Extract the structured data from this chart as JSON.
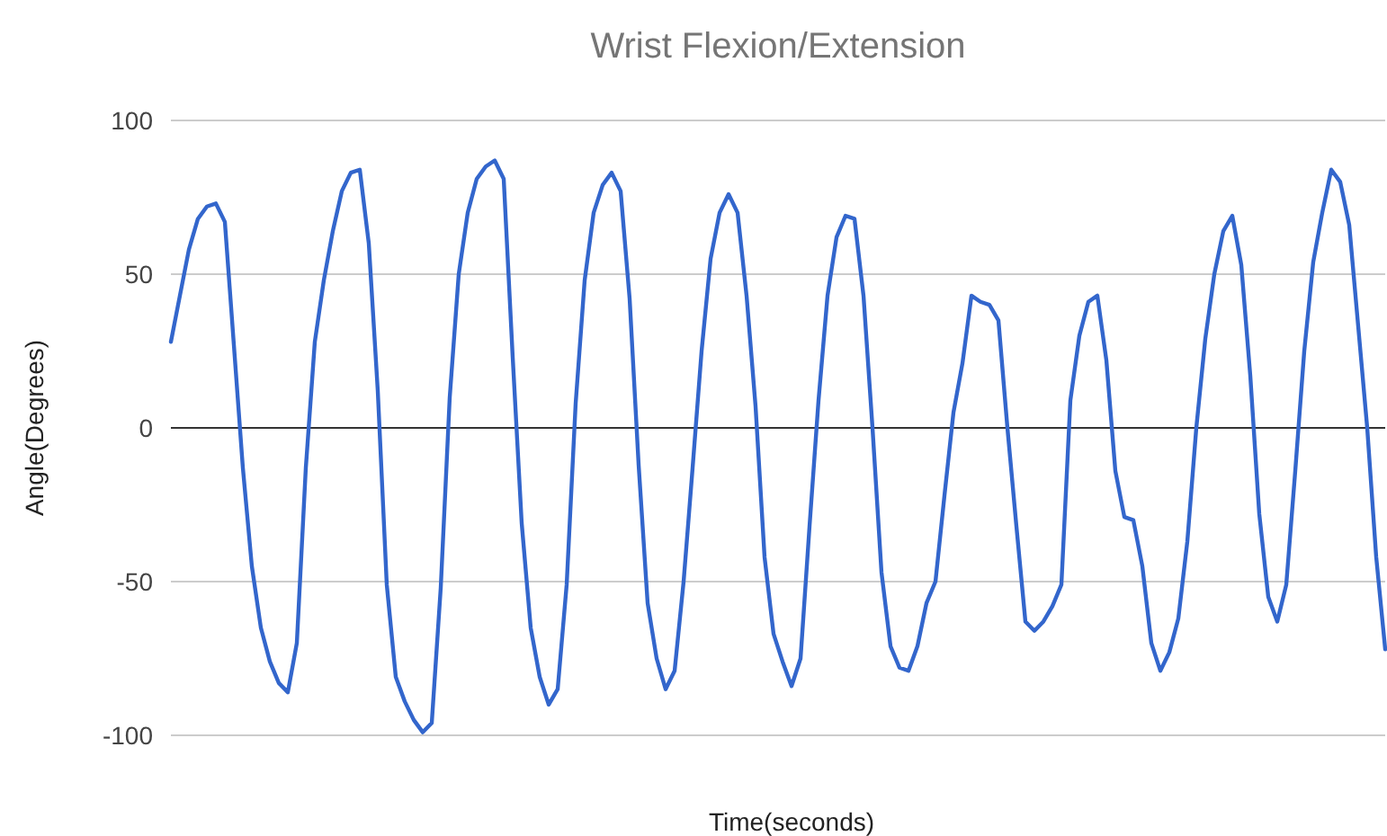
{
  "chart_data": {
    "type": "line",
    "title": "Wrist Flexion/Extension",
    "xlabel": "Time(seconds)",
    "ylabel": "Angle(Degrees)",
    "categories": [
      null,
      null,
      null,
      null,
      null,
      null,
      null,
      null,
      null,
      null,
      null,
      null,
      null,
      null,
      null,
      null,
      null,
      null,
      null,
      null,
      null,
      null,
      null,
      null,
      null,
      null,
      null,
      null,
      null,
      null,
      null,
      null,
      null,
      null,
      null,
      null,
      null,
      null,
      null,
      null,
      null,
      null,
      null,
      null,
      null,
      null,
      null,
      null,
      null,
      null,
      null,
      null,
      null,
      null,
      null,
      null,
      null,
      null,
      null,
      null,
      null,
      null,
      null,
      null,
      null,
      null,
      null,
      null,
      null,
      null,
      null,
      null,
      null,
      null,
      null,
      null,
      null,
      null,
      null,
      null,
      null,
      null,
      null,
      null,
      null,
      null,
      null,
      null,
      null,
      null,
      null,
      null,
      null,
      null,
      null,
      null,
      null,
      null,
      null,
      null,
      null,
      null,
      null,
      null,
      null,
      null,
      null,
      null,
      null,
      null,
      null,
      null,
      null,
      null,
      null,
      null,
      null,
      null,
      null,
      null,
      null,
      null,
      null,
      null,
      null,
      null,
      null,
      null,
      null,
      null,
      null,
      null,
      null,
      null,
      null,
      null
    ],
    "series": [
      {
        "color": "#3366cc",
        "values": [
          28,
          43,
          58,
          68,
          72,
          73,
          67,
          27,
          -13,
          -45,
          -65,
          -76,
          -83,
          -86,
          -70,
          -13,
          28,
          48,
          64,
          77,
          83,
          84,
          60,
          12,
          -51,
          -81,
          -89,
          -95,
          -99,
          -96,
          -52,
          10,
          50,
          70,
          81,
          85,
          87,
          81,
          23,
          -31,
          -65,
          -81,
          -90,
          -85,
          -51,
          8,
          48,
          70,
          79,
          83,
          77,
          42,
          -12,
          -57,
          -75,
          -85,
          -79,
          -50,
          -13,
          25,
          55,
          70,
          76,
          70,
          43,
          7,
          -42,
          -67,
          -76,
          -84,
          -75,
          -32,
          9,
          43,
          62,
          69,
          68,
          43,
          0,
          -47,
          -71,
          -78,
          -79,
          -71,
          -57,
          -50,
          -22,
          5,
          21,
          43,
          41,
          40,
          35,
          0,
          -32,
          -63,
          -66,
          -63,
          -58,
          -51,
          9,
          30,
          41,
          43,
          22,
          -14,
          -29,
          -30,
          -45,
          -70,
          -79,
          -73,
          -62,
          -37,
          0,
          29,
          50,
          64,
          69,
          53,
          17,
          -28,
          -55,
          -63,
          -51,
          -14,
          25,
          54,
          70,
          84,
          80,
          66,
          33,
          0,
          -42,
          -72
        ]
      }
    ],
    "ylim": [
      -100,
      100
    ],
    "yticks": [
      -100,
      -50,
      0,
      50,
      100
    ],
    "grid": "y",
    "tick_labels": "y",
    "marker": "none",
    "line_style": "solid"
  }
}
